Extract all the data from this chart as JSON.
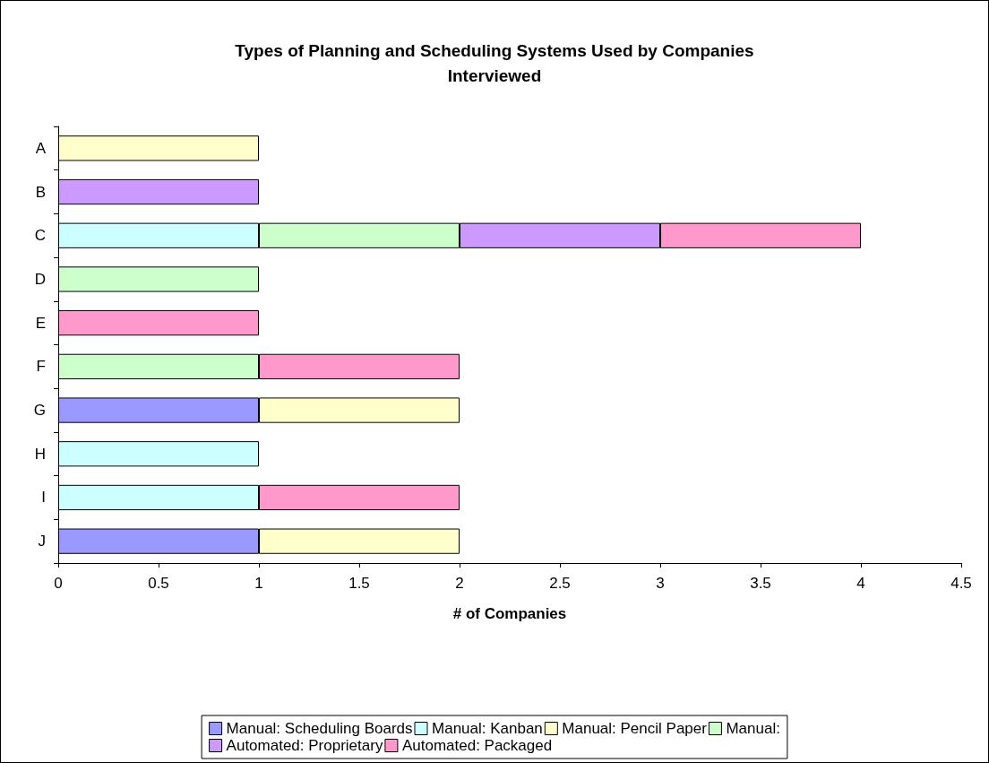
{
  "chart_data": {
    "type": "bar",
    "orientation": "horizontal",
    "stacked": true,
    "title": "Types of Planning and Scheduling Systems Used by Companies\nInterviewed",
    "xlabel": "# of Companies",
    "categories": [
      "A",
      "B",
      "C",
      "D",
      "E",
      "F",
      "G",
      "H",
      "I",
      "J"
    ],
    "series": [
      {
        "name": "Manual: Scheduling Boards",
        "color": "#9999ff",
        "values": [
          null,
          null,
          null,
          null,
          null,
          null,
          1,
          null,
          null,
          1
        ]
      },
      {
        "name": "Manual: Kanban",
        "color": "#ccffff",
        "values": [
          null,
          null,
          1,
          null,
          null,
          null,
          null,
          1,
          1,
          null
        ]
      },
      {
        "name": "Manual: Pencil Paper",
        "color": "#ffffcc",
        "values": [
          1,
          null,
          null,
          null,
          null,
          null,
          1,
          null,
          null,
          1
        ]
      },
      {
        "name": "Manual:",
        "color": "#ccffcc",
        "values": [
          null,
          null,
          1,
          1,
          null,
          1,
          null,
          null,
          null,
          null
        ]
      },
      {
        "name": "Automated: Proprietary",
        "color": "#cc99ff",
        "values": [
          null,
          1,
          1,
          null,
          null,
          null,
          null,
          null,
          null,
          null
        ]
      },
      {
        "name": "Automated: Packaged",
        "color": "#ff99cc",
        "values": [
          null,
          null,
          1,
          null,
          1,
          1,
          null,
          null,
          1,
          null
        ]
      }
    ],
    "xlim": [
      0,
      4.5
    ],
    "xticks": [
      0,
      0.5,
      1,
      1.5,
      2,
      2.5,
      3,
      3.5,
      4,
      4.5
    ],
    "grid": false,
    "legend": "bottom"
  }
}
